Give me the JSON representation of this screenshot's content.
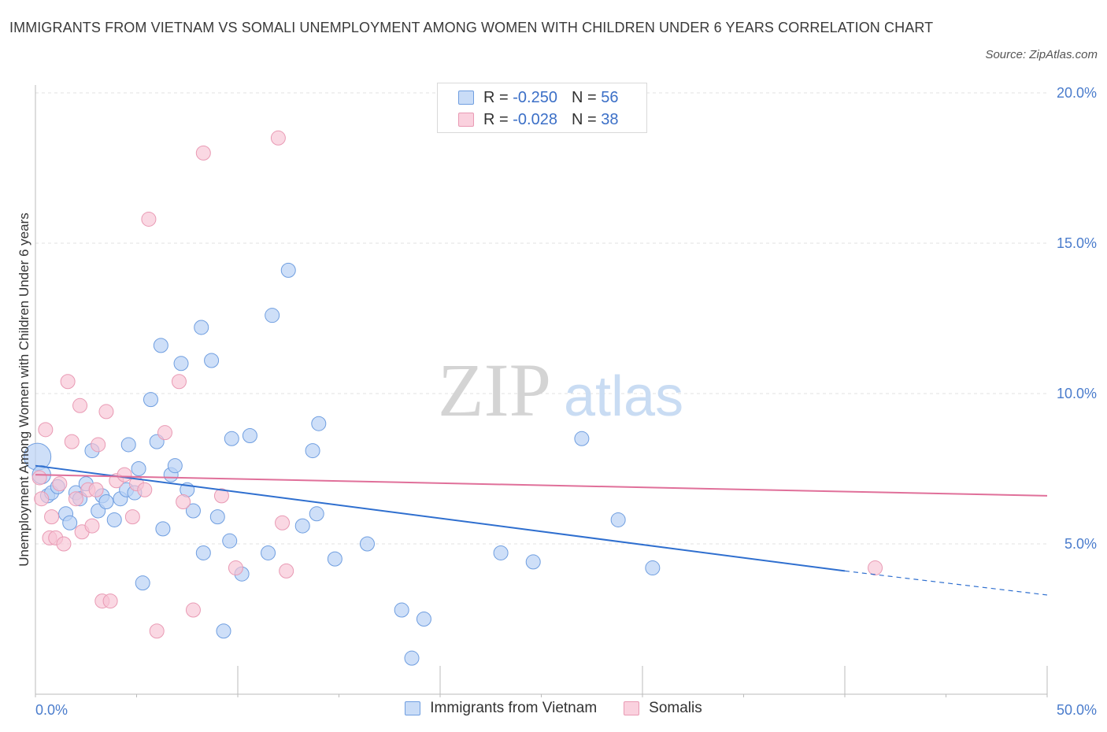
{
  "title": "IMMIGRANTS FROM VIETNAM VS SOMALI UNEMPLOYMENT AMONG WOMEN WITH CHILDREN UNDER 6 YEARS CORRELATION CHART",
  "source": "Source: ZipAtlas.com",
  "watermark": {
    "zip": "ZIP",
    "atlas": "atlas"
  },
  "legend": {
    "rows": [
      {
        "r_label": "R = ",
        "r_value": "-0.250",
        "n_label": "N = ",
        "n_value": "56"
      },
      {
        "r_label": "R = ",
        "r_value": "-0.028",
        "n_label": "N = ",
        "n_value": "38"
      }
    ]
  },
  "colors": {
    "vietnam_fill": "#b9d1f5",
    "vietnam_stroke": "#6f9ee0",
    "vietnam_line": "#2f6fcf",
    "somali_fill": "#f7c3d4",
    "somali_stroke": "#e99ab4",
    "somali_line": "#e0709a",
    "grid": "#e2e2e2",
    "axis_text": "#4a7ccc"
  },
  "chart_data": {
    "type": "scatter",
    "title": "IMMIGRANTS FROM VIETNAM VS SOMALI UNEMPLOYMENT AMONG WOMEN WITH CHILDREN UNDER 6 YEARS CORRELATION CHART",
    "xlabel": "",
    "ylabel": "Unemployment Among Women with Children Under 6 years",
    "xlim": [
      0,
      50
    ],
    "ylim": [
      0,
      20
    ],
    "x_tick_labels": [
      "0.0%",
      "50.0%"
    ],
    "y_ticks": [
      5,
      10,
      15,
      20
    ],
    "y_tick_labels": [
      "5.0%",
      "10.0%",
      "15.0%",
      "20.0%"
    ],
    "grid": "horizontal dashed",
    "legend_position": "bottom",
    "series": [
      {
        "name": "Immigrants from Vietnam",
        "color": "#6f9ee0",
        "trend": {
          "x": [
            0,
            40
          ],
          "y": [
            7.6,
            4.1
          ],
          "dashed_extension": {
            "x": [
              40,
              50
            ],
            "y": [
              4.1,
              3.3
            ]
          }
        },
        "points": [
          [
            0.1,
            7.9,
            1.9
          ],
          [
            0.3,
            7.3,
            1.3
          ],
          [
            0.6,
            6.6,
            1
          ],
          [
            0.8,
            6.7,
            1
          ],
          [
            1.1,
            6.9,
            1
          ],
          [
            1.5,
            6.0,
            1
          ],
          [
            1.7,
            5.7,
            1
          ],
          [
            2.0,
            6.7,
            1
          ],
          [
            2.2,
            6.5,
            1
          ],
          [
            2.5,
            7.0,
            1
          ],
          [
            2.8,
            8.1,
            1
          ],
          [
            3.1,
            6.1,
            1
          ],
          [
            3.3,
            6.6,
            1
          ],
          [
            3.5,
            6.4,
            1
          ],
          [
            3.9,
            5.8,
            1
          ],
          [
            4.2,
            6.5,
            1
          ],
          [
            4.5,
            6.8,
            1
          ],
          [
            4.6,
            8.3,
            1
          ],
          [
            4.9,
            6.7,
            1
          ],
          [
            5.1,
            7.5,
            1
          ],
          [
            5.3,
            3.7,
            1
          ],
          [
            5.7,
            9.8,
            1
          ],
          [
            6.0,
            8.4,
            1
          ],
          [
            6.2,
            11.6,
            1
          ],
          [
            6.3,
            5.5,
            1
          ],
          [
            6.7,
            7.3,
            1
          ],
          [
            6.9,
            7.6,
            1
          ],
          [
            7.2,
            11.0,
            1
          ],
          [
            7.5,
            6.8,
            1
          ],
          [
            7.8,
            6.1,
            1
          ],
          [
            8.2,
            12.2,
            1
          ],
          [
            8.3,
            4.7,
            1
          ],
          [
            8.7,
            11.1,
            1
          ],
          [
            9.0,
            5.9,
            1
          ],
          [
            9.3,
            2.1,
            1
          ],
          [
            9.6,
            5.1,
            1
          ],
          [
            9.7,
            8.5,
            1
          ],
          [
            10.2,
            4.0,
            1
          ],
          [
            10.6,
            8.6,
            1
          ],
          [
            11.5,
            4.7,
            1
          ],
          [
            11.7,
            12.6,
            1
          ],
          [
            12.5,
            14.1,
            1
          ],
          [
            13.2,
            5.6,
            1
          ],
          [
            13.7,
            8.1,
            1
          ],
          [
            13.9,
            6.0,
            1
          ],
          [
            14.0,
            9.0,
            1
          ],
          [
            14.8,
            4.5,
            1
          ],
          [
            16.4,
            5.0,
            1
          ],
          [
            18.1,
            2.8,
            1
          ],
          [
            18.6,
            1.2,
            1
          ],
          [
            19.2,
            2.5,
            1
          ],
          [
            23.0,
            4.7,
            1
          ],
          [
            24.6,
            4.4,
            1
          ],
          [
            27.0,
            8.5,
            1
          ],
          [
            28.8,
            5.8,
            1
          ],
          [
            30.5,
            4.2,
            1
          ]
        ]
      },
      {
        "name": "Somalis",
        "color": "#e99ab4",
        "trend": {
          "x": [
            0,
            50
          ],
          "y": [
            7.3,
            6.6
          ]
        },
        "points": [
          [
            0.2,
            7.2,
            1
          ],
          [
            0.3,
            6.5,
            1
          ],
          [
            0.5,
            8.8,
            1
          ],
          [
            0.7,
            5.2,
            1
          ],
          [
            0.8,
            5.9,
            1
          ],
          [
            1.0,
            5.2,
            1
          ],
          [
            1.2,
            7.0,
            1
          ],
          [
            1.4,
            5.0,
            1
          ],
          [
            1.6,
            10.4,
            1
          ],
          [
            1.8,
            8.4,
            1
          ],
          [
            2.0,
            6.5,
            1
          ],
          [
            2.2,
            9.6,
            1
          ],
          [
            2.3,
            5.4,
            1
          ],
          [
            2.6,
            6.8,
            1
          ],
          [
            2.8,
            5.6,
            1
          ],
          [
            3.0,
            6.8,
            1
          ],
          [
            3.1,
            8.3,
            1
          ],
          [
            3.3,
            3.1,
            1
          ],
          [
            3.5,
            9.4,
            1
          ],
          [
            3.7,
            3.1,
            1
          ],
          [
            4.0,
            7.1,
            1
          ],
          [
            4.4,
            7.3,
            1
          ],
          [
            4.8,
            5.9,
            1
          ],
          [
            5.0,
            7.0,
            1
          ],
          [
            5.4,
            6.8,
            1
          ],
          [
            5.6,
            15.8,
            1
          ],
          [
            6.0,
            2.1,
            1
          ],
          [
            6.4,
            8.7,
            1
          ],
          [
            7.1,
            10.4,
            1
          ],
          [
            7.3,
            6.4,
            1
          ],
          [
            7.8,
            2.8,
            1
          ],
          [
            8.3,
            18.0,
            1
          ],
          [
            9.2,
            6.6,
            1
          ],
          [
            9.9,
            4.2,
            1
          ],
          [
            12.0,
            18.5,
            1
          ],
          [
            12.2,
            5.7,
            1
          ],
          [
            12.4,
            4.1,
            1
          ],
          [
            41.5,
            4.2,
            1
          ]
        ]
      }
    ]
  }
}
